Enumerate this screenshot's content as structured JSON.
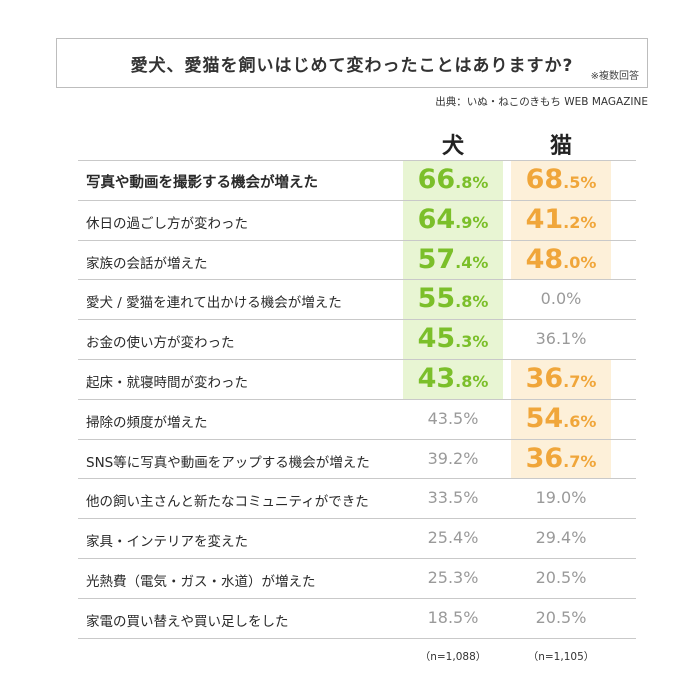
{
  "title": "愛犬、愛猫を飼いはじめて変わったことはありますか?",
  "note": "※複数回答",
  "source": "出典：いぬ・ねこのきもち WEB MAGAZINE",
  "columns": [
    "犬",
    "猫"
  ],
  "sample_sizes": [
    "（n=1,088）",
    "（n=1,105）"
  ],
  "colors": {
    "dog_highlight_bg": "#e8f5d3",
    "dog_highlight_fg": "#7bbf2a",
    "cat_highlight_bg": "#fdf0d9",
    "cat_highlight_fg": "#f0a63a",
    "plain_fg": "#9a9a9a",
    "border_line": "#c9c9c9"
  },
  "chart_data": {
    "type": "table",
    "title": "愛犬、愛猫を飼いはじめて変わったことはありますか?",
    "series": [
      {
        "name": "犬",
        "values": [
          66.8,
          64.9,
          57.4,
          55.8,
          45.3,
          43.8,
          43.5,
          39.2,
          33.5,
          25.4,
          25.3,
          18.5
        ]
      },
      {
        "name": "猫",
        "values": [
          68.5,
          41.2,
          48.0,
          0.0,
          36.1,
          36.7,
          54.6,
          36.7,
          19.0,
          29.4,
          20.5,
          20.5
        ]
      }
    ],
    "categories": [
      "写真や動画を撮影する機会が増えた",
      "休日の過ごし方が変わった",
      "家族の会話が増えた",
      "愛犬 / 愛猫を連れて出かける機会が増えた",
      "お金の使い方が変わった",
      "起床・就寝時間が変わった",
      "掃除の頻度が増えた",
      "SNS等に写真や動画をアップする機会が増えた",
      "他の飼い主さんと新たなコミュニティができた",
      "家具・インテリアを変えた",
      "光熱費（電気・ガス・水道）が増えた",
      "家電の買い替えや買い足しをした"
    ],
    "highlighted": {
      "犬": [
        true,
        true,
        true,
        true,
        true,
        true,
        false,
        false,
        false,
        false,
        false,
        false
      ],
      "猫": [
        true,
        true,
        true,
        false,
        false,
        true,
        true,
        true,
        false,
        false,
        false,
        false
      ]
    },
    "unit": "%"
  }
}
